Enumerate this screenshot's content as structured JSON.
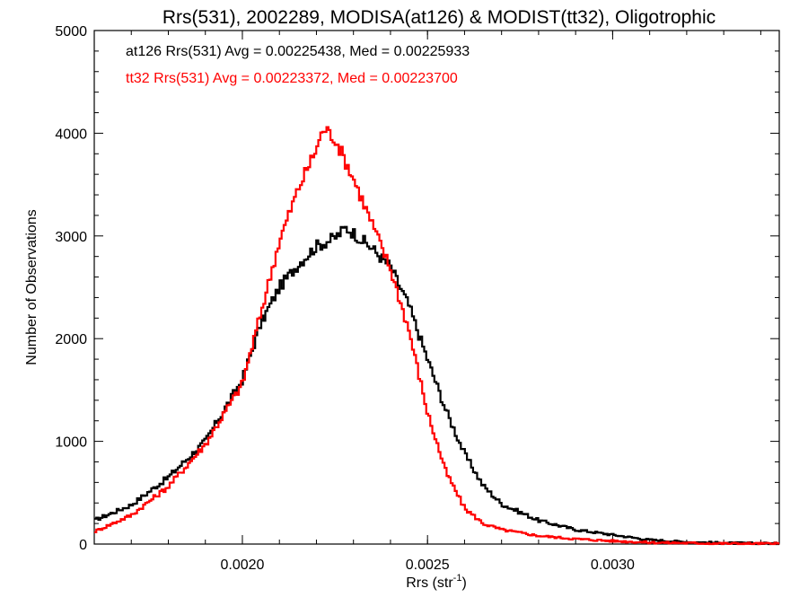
{
  "chart_data": {
    "type": "line",
    "step": true,
    "title": "Rrs(531), 2002289, MODISA(at126) & MODIST(tt32), Oligotrophic",
    "xlabel": "Rrs (str",
    "xlabel_sup": "-1",
    "xlabel_close": ")",
    "ylabel": "Number of Observations",
    "xlim": [
      0.0016,
      0.00345
    ],
    "ylim": [
      0,
      5000
    ],
    "x_ticks": [
      0.002,
      0.0025,
      0.003
    ],
    "x_tick_labels": [
      "0.0020",
      "0.0025",
      "0.0030"
    ],
    "y_ticks": [
      0,
      1000,
      2000,
      3000,
      4000,
      5000
    ],
    "y_tick_labels": [
      "0",
      "1000",
      "2000",
      "3000",
      "4000",
      "5000"
    ],
    "grid": false,
    "annotations": [
      {
        "text": "at126 Rrs(531) Avg = 0.00225438, Med = 0.00225933",
        "color": "#000000"
      },
      {
        "text": "tt32 Rrs(531) Avg = 0.00223372, Med = 0.00223700",
        "color": "#ff0000"
      }
    ],
    "series": [
      {
        "color": "#000000",
        "x": [
          0.0016,
          0.0017,
          0.0018,
          0.0019,
          0.002,
          0.00205,
          0.0021,
          0.00215,
          0.0022,
          0.00225,
          0.00228,
          0.0023,
          0.00235,
          0.0024,
          0.00245,
          0.0025,
          0.00255,
          0.0026,
          0.00265,
          0.0027,
          0.0028,
          0.0029,
          0.003,
          0.0031,
          0.0032,
          0.0033,
          0.00345
        ],
        "y": [
          230,
          380,
          650,
          1000,
          1600,
          2150,
          2500,
          2720,
          2900,
          2980,
          3080,
          3030,
          2880,
          2700,
          2320,
          1800,
          1300,
          880,
          570,
          390,
          230,
          140,
          90,
          40,
          20,
          10,
          5
        ]
      },
      {
        "color": "#ff0000",
        "x": [
          0.0016,
          0.0017,
          0.0018,
          0.0019,
          0.002,
          0.00205,
          0.0021,
          0.00215,
          0.0022,
          0.00222,
          0.00225,
          0.0023,
          0.00235,
          0.0024,
          0.00245,
          0.0025,
          0.00255,
          0.0026,
          0.00265,
          0.0027,
          0.0028,
          0.0029,
          0.003,
          0.0031,
          0.0032,
          0.0033,
          0.00345
        ],
        "y": [
          120,
          280,
          560,
          970,
          1560,
          2250,
          2950,
          3450,
          3850,
          4050,
          3950,
          3560,
          3120,
          2680,
          2080,
          1280,
          700,
          350,
          200,
          140,
          80,
          50,
          30,
          15,
          10,
          5,
          3
        ]
      }
    ]
  }
}
